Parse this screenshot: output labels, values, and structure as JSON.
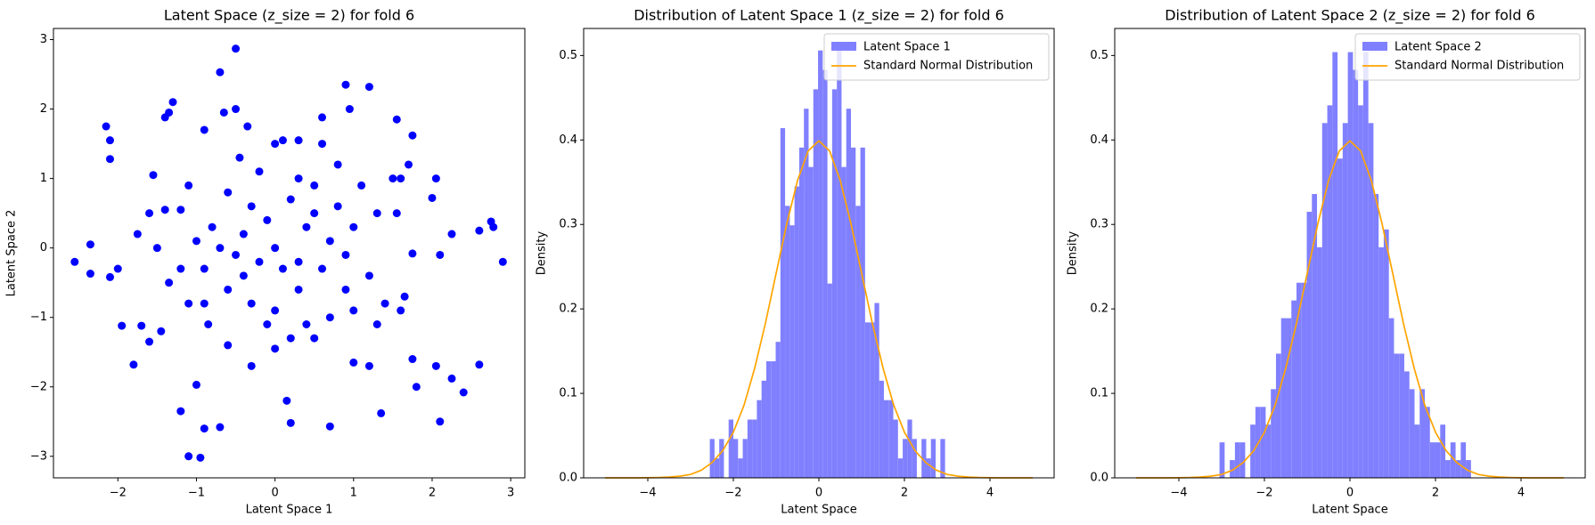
{
  "chart_data": [
    {
      "type": "scatter",
      "title": "Latent Space (z_size = 2) for fold 6",
      "x_label": "Latent Space 1",
      "y_label": "Latent Space 2",
      "color": "blue",
      "x": [
        -2.55,
        -2.35,
        -2.35,
        -2.15,
        -2.1,
        -2.1,
        -2.1,
        -2.0,
        -1.95,
        -1.8,
        -1.75,
        -1.7,
        -1.6,
        -1.55,
        -1.5,
        -1.45,
        -1.4,
        -1.35,
        -1.3,
        -1.2,
        -1.1,
        -1.0,
        -0.95,
        -0.9,
        -0.7,
        -0.7,
        -0.5,
        -0.45,
        -0.35,
        -0.5,
        -0.65,
        -0.9,
        -1.1,
        -1.2,
        -1.4,
        -1.6,
        -1.35,
        -1.1,
        -0.85,
        -0.6,
        -0.3,
        0.0,
        0.15,
        0.2,
        0.7,
        0.5,
        1.0,
        1.2,
        1.35,
        1.75,
        1.8,
        2.05,
        2.1,
        2.25,
        2.4,
        2.6,
        2.75,
        2.78,
        2.9,
        2.6,
        2.25,
        2.1,
        2.05,
        2.0,
        1.75,
        1.55,
        1.6,
        1.65,
        1.75,
        1.7,
        1.6,
        1.5,
        1.55,
        1.2,
        0.95,
        0.9,
        0.6,
        0.6,
        0.3,
        0.1,
        0.0,
        1.3,
        1.0,
        0.8,
        0.5,
        0.2,
        -0.1,
        -0.4,
        -0.7,
        -0.9,
        -0.6,
        -0.3,
        0.0,
        0.3,
        0.6,
        0.9,
        1.2,
        1.4,
        1.0,
        0.7,
        0.4,
        0.1,
        -0.2,
        -0.5,
        -0.8,
        -1.0,
        -0.3,
        0.4,
        0.7,
        1.1,
        0.8,
        0.3,
        -0.2,
        -0.6,
        -0.9,
        0.2,
        -0.1,
        0.9,
        1.3,
        -1.2,
        0.5,
        0.0,
        -0.4,
        0.3
      ],
      "values": [
        -0.2,
        0.05,
        -0.37,
        1.75,
        1.55,
        1.28,
        -0.42,
        -0.3,
        -1.12,
        -1.68,
        0.2,
        -1.12,
        -1.35,
        1.05,
        0.0,
        -1.2,
        1.88,
        1.95,
        2.1,
        -2.35,
        -3.0,
        -1.97,
        -3.02,
        -2.6,
        -2.58,
        2.53,
        2.87,
        1.3,
        1.75,
        2.0,
        1.95,
        1.7,
        0.9,
        0.55,
        0.55,
        0.5,
        -0.5,
        -0.8,
        -1.1,
        -1.4,
        -1.7,
        -1.45,
        -2.2,
        -2.52,
        -2.57,
        -1.3,
        -1.65,
        -1.7,
        -2.38,
        -1.6,
        -2.0,
        -1.7,
        -2.5,
        -1.88,
        -2.08,
        -1.68,
        0.38,
        0.3,
        -0.2,
        0.25,
        0.2,
        -0.1,
        1.0,
        0.72,
        -0.08,
        0.5,
        -0.9,
        -0.7,
        1.62,
        1.2,
        1.0,
        1.0,
        1.85,
        2.32,
        2.0,
        2.35,
        1.88,
        1.5,
        1.55,
        1.55,
        1.5,
        0.5,
        0.3,
        0.6,
        0.9,
        0.7,
        0.4,
        0.2,
        0.0,
        -0.3,
        -0.6,
        -0.8,
        -0.9,
        -0.6,
        -0.3,
        -0.1,
        -0.4,
        -0.8,
        -0.9,
        -1.0,
        -1.1,
        -0.3,
        -0.2,
        -0.1,
        0.3,
        0.1,
        0.6,
        0.3,
        0.1,
        0.9,
        1.2,
        1.0,
        1.1,
        0.8,
        -0.8,
        -1.3,
        -1.1,
        -0.6,
        -1.1,
        -0.3,
        0.5,
        0.0,
        -0.4,
        -0.2
      ],
      "xlim": [
        -2.82,
        3.18
      ],
      "ylim": [
        -3.31,
        3.16
      ],
      "xticks": [
        {
          "value": -2,
          "label": "−2"
        },
        {
          "value": -1,
          "label": "−1"
        },
        0,
        1,
        2,
        3
      ],
      "yticks": [
        {
          "value": -3,
          "label": "−3"
        },
        {
          "value": -2,
          "label": "−2"
        },
        {
          "value": -1,
          "label": "−1"
        },
        0,
        1,
        2,
        3
      ]
    },
    {
      "type": "histogram",
      "title": "Distribution of Latent Space 1 (z_size = 2) for fold 6",
      "x_label": "Latent Space",
      "y_label": "Density",
      "legend": "upper right",
      "bins": [
        -2.55,
        -2.44,
        -2.33,
        -2.22,
        -2.11,
        -2.0,
        -1.89,
        -1.78,
        -1.67,
        -1.56,
        -1.45,
        -1.34,
        -1.23,
        -1.12,
        -1.01,
        -0.9,
        -0.79,
        -0.68,
        -0.57,
        -0.46,
        -0.35,
        -0.24,
        -0.13,
        -0.02,
        0.09,
        0.2,
        0.31,
        0.42,
        0.53,
        0.64,
        0.75,
        0.86,
        0.97,
        1.08,
        1.19,
        1.3,
        1.41,
        1.52,
        1.63,
        1.74,
        1.85,
        1.96,
        2.07,
        2.18,
        2.29,
        2.4,
        2.51,
        2.62,
        2.73,
        2.84,
        2.95
      ],
      "series": [
        {
          "name": "Latent Space 1",
          "color": "#8080ff",
          "values": [
            0.046,
            0.023,
            0.046,
            0,
            0.069,
            0.046,
            0.023,
            0.046,
            0.069,
            0.069,
            0.092,
            0.115,
            0.138,
            0.138,
            0.161,
            0.414,
            0.322,
            0.299,
            0.345,
            0.391,
            0.437,
            0.368,
            0.46,
            0.506,
            0.483,
            0.23,
            0.46,
            0.506,
            0.368,
            0.437,
            0.391,
            0.322,
            0.391,
            0.184,
            0.184,
            0.207,
            0.115,
            0.092,
            0.092,
            0.069,
            0.023,
            0.046,
            0.069,
            0.046,
            0,
            0.046,
            0.023,
            0.046,
            0,
            0.046
          ]
        }
      ],
      "line": {
        "name": "Standard Normal Distribution",
        "color": "orange",
        "x": [
          -5,
          -4.75,
          -4.5,
          -4.25,
          -4,
          -3.75,
          -3.5,
          -3.25,
          -3,
          -2.75,
          -2.5,
          -2.25,
          -2,
          -1.75,
          -1.5,
          -1.25,
          -1,
          -0.75,
          -0.5,
          -0.25,
          0,
          0.25,
          0.5,
          0.75,
          1,
          1.25,
          1.5,
          1.75,
          2,
          2.25,
          2.5,
          2.75,
          3,
          3.25,
          3.5,
          3.75,
          4,
          4.25,
          4.5,
          4.75,
          5
        ],
        "values": [
          0,
          0,
          0,
          0,
          0.0001,
          0.0004,
          0.001,
          0.002,
          0.004,
          0.009,
          0.018,
          0.032,
          0.054,
          0.086,
          0.13,
          0.183,
          0.242,
          0.301,
          0.352,
          0.387,
          0.399,
          0.387,
          0.352,
          0.301,
          0.242,
          0.183,
          0.13,
          0.086,
          0.054,
          0.032,
          0.018,
          0.009,
          0.004,
          0.002,
          0.001,
          0.0004,
          0.0001,
          0,
          0,
          0,
          0
        ]
      },
      "xlim": [
        -5.5,
        5.5
      ],
      "ylim": [
        0,
        0.532
      ],
      "xticks": [
        {
          "value": -4,
          "label": "−4"
        },
        {
          "value": -2,
          "label": "−2"
        },
        0,
        2,
        4
      ],
      "yticks": [
        {
          "value": 0,
          "label": "0.0"
        },
        0.1,
        0.2,
        0.3,
        0.4,
        {
          "value": 0.5,
          "label": "0.5"
        }
      ]
    },
    {
      "type": "histogram",
      "title": "Distribution of Latent Space 2 (z_size = 2) for fold 6",
      "x_label": "Latent Space",
      "y_label": "Density",
      "legend": "upper right",
      "bins": [
        -3.05,
        -2.93,
        -2.81,
        -2.69,
        -2.57,
        -2.45,
        -2.33,
        -2.21,
        -2.09,
        -1.97,
        -1.85,
        -1.73,
        -1.61,
        -1.49,
        -1.37,
        -1.25,
        -1.13,
        -1.01,
        -0.89,
        -0.77,
        -0.65,
        -0.53,
        -0.41,
        -0.29,
        -0.17,
        -0.05,
        0.07,
        0.19,
        0.31,
        0.43,
        0.55,
        0.67,
        0.79,
        0.91,
        1.03,
        1.15,
        1.27,
        1.39,
        1.51,
        1.63,
        1.75,
        1.87,
        1.99,
        2.11,
        2.23,
        2.35,
        2.47,
        2.59,
        2.71,
        2.83,
        2.95
      ],
      "series": [
        {
          "name": "Latent Space 2",
          "color": "#8080ff",
          "values": [
            0.042,
            0,
            0.021,
            0.042,
            0.042,
            0,
            0.063,
            0.084,
            0.084,
            0.063,
            0.105,
            0.147,
            0.189,
            0.189,
            0.21,
            0.231,
            0.231,
            0.315,
            0.336,
            0.273,
            0.42,
            0.441,
            0.504,
            0.378,
            0.42,
            0.504,
            0.483,
            0.441,
            0.504,
            0.42,
            0.336,
            0.273,
            0.294,
            0.189,
            0.147,
            0.147,
            0.126,
            0.105,
            0.063,
            0.105,
            0.084,
            0.042,
            0.042,
            0.063,
            0.021,
            0.042,
            0.021,
            0.042,
            0.021,
            0
          ]
        }
      ],
      "line": {
        "name": "Standard Normal Distribution",
        "color": "orange",
        "x": [
          -5,
          -4.75,
          -4.5,
          -4.25,
          -4,
          -3.75,
          -3.5,
          -3.25,
          -3,
          -2.75,
          -2.5,
          -2.25,
          -2,
          -1.75,
          -1.5,
          -1.25,
          -1,
          -0.75,
          -0.5,
          -0.25,
          0,
          0.25,
          0.5,
          0.75,
          1,
          1.25,
          1.5,
          1.75,
          2,
          2.25,
          2.5,
          2.75,
          3,
          3.25,
          3.5,
          3.75,
          4,
          4.25,
          4.5,
          4.75,
          5
        ],
        "values": [
          0,
          0,
          0,
          0,
          0.0001,
          0.0004,
          0.001,
          0.002,
          0.004,
          0.009,
          0.018,
          0.032,
          0.054,
          0.086,
          0.13,
          0.183,
          0.242,
          0.301,
          0.352,
          0.387,
          0.399,
          0.387,
          0.352,
          0.301,
          0.242,
          0.183,
          0.13,
          0.086,
          0.054,
          0.032,
          0.018,
          0.009,
          0.004,
          0.002,
          0.001,
          0.0004,
          0.0001,
          0,
          0,
          0,
          0
        ]
      },
      "xlim": [
        -5.5,
        5.5
      ],
      "ylim": [
        0,
        0.532
      ],
      "xticks": [
        {
          "value": -4,
          "label": "−4"
        },
        {
          "value": -2,
          "label": "−2"
        },
        0,
        2,
        4
      ],
      "yticks": [
        {
          "value": 0,
          "label": "0.0"
        },
        0.1,
        0.2,
        0.3,
        0.4,
        {
          "value": 0.5,
          "label": "0.5"
        }
      ]
    }
  ]
}
